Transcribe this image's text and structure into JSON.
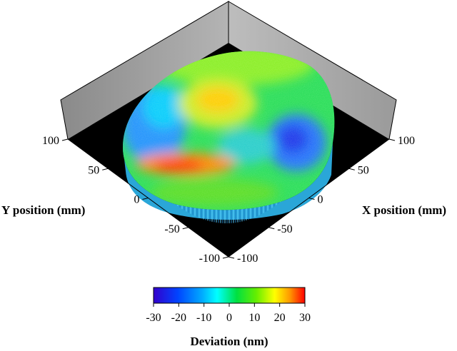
{
  "chart_data": {
    "type": "surface3d",
    "xlabel": "X position (mm)",
    "ylabel": "Y position (mm)",
    "colorbar_label": "Deviation (nm)",
    "x_ticks": [
      "100",
      "50",
      "0",
      "-50",
      "-100"
    ],
    "y_ticks": [
      "100",
      "50",
      "0",
      "-50",
      "-100"
    ],
    "x_range": [
      -100,
      100
    ],
    "y_range": [
      -100,
      100
    ],
    "z_range": [
      -30,
      30
    ],
    "colorbar_ticks": [
      "-30",
      "-20",
      "-10",
      "0",
      "10",
      "20",
      "30"
    ],
    "colormap": [
      "#3300cc",
      "#0044ff",
      "#00aaff",
      "#00ffff",
      "#00e040",
      "#66ee00",
      "#ffff00",
      "#ff9900",
      "#ff0000"
    ],
    "surface_features": [
      {
        "x": 5,
        "y": 35,
        "deviation": 20,
        "desc": "central high region"
      },
      {
        "x": 65,
        "y": -15,
        "deviation": -20,
        "desc": "right low region"
      },
      {
        "x": -60,
        "y": 10,
        "deviation": -10,
        "desc": "left low region"
      },
      {
        "x": -25,
        "y": -45,
        "deviation": 25,
        "desc": "front-left high edge"
      }
    ]
  }
}
